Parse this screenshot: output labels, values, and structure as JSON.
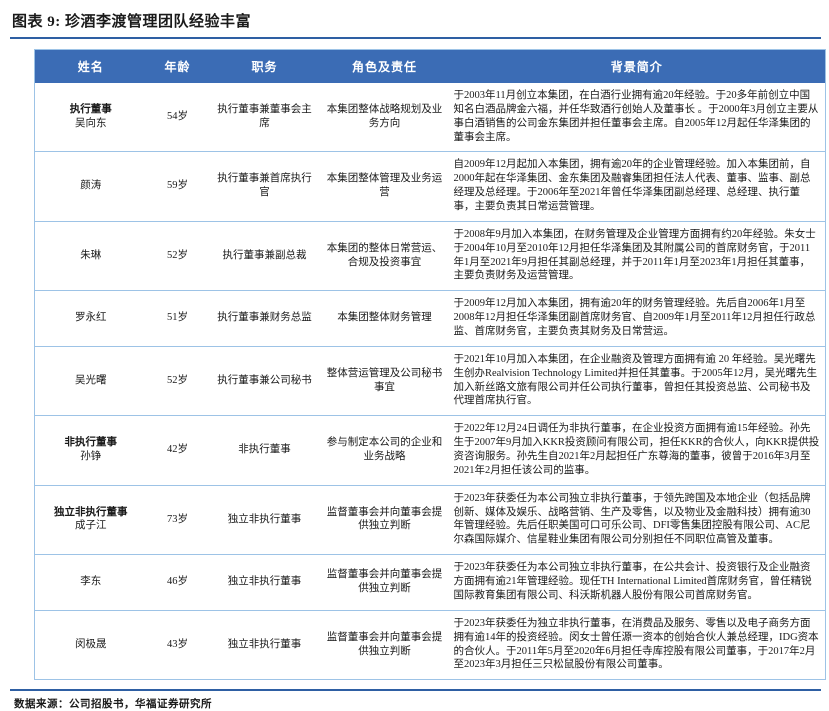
{
  "title": "图表 9: 珍酒李渡管理团队经验丰富",
  "footer": {
    "source": "数据来源：公司招股书，华福证券研究所"
  },
  "colors": {
    "header_bg": "#3b6cb5",
    "rule": "#2e5fa3",
    "row_border": "#9dc3e6"
  },
  "table": {
    "headers": [
      "姓名",
      "年龄",
      "职务",
      "角色及责任",
      "背景简介"
    ],
    "rows": [
      {
        "group": "执行董事",
        "name": "吴向东",
        "age": "54岁",
        "position": "执行董事兼董事会主席",
        "role": "本集团整体战略规划及业务方向",
        "background": "于2003年11月创立本集团，在白酒行业拥有逾20年经验。于20多年前创立中国知名白酒品牌金六福，并任华致酒行创始人及董事长 。于2000年3月创立主要从事白酒销售的公司金东集团并担任董事会主席。自2005年12月起任华泽集团的董事会主席。"
      },
      {
        "group": "",
        "name": "颜涛",
        "age": "59岁",
        "position": "执行董事兼首席执行官",
        "role": "本集团整体管理及业务运营",
        "background": "自2009年12月起加入本集团，拥有逾20年的企业管理经验。加入本集团前，自2000年起在华泽集团、金东集团及融睿集团担任法人代表、董事、监事、副总经理及总经理。于2006年至2021年曾任华泽集团副总经理、总经理、执行董事，主要负责其日常运营管理。"
      },
      {
        "group": "",
        "name": "朱琳",
        "age": "52岁",
        "position": "执行董事兼副总裁",
        "role": "本集团的整体日常营运、合规及投资事宜",
        "background": "于2008年9月加入本集团，在财务管理及企业管理方面拥有约20年经验。朱女士于2004年10月至2010年12月担任华泽集团及其附属公司的首席财务官，于2011年1月至2021年9月担任其副总经理，并于2011年1月至2023年1月担任其董事，主要负责财务及运营管理。"
      },
      {
        "group": "",
        "name": "罗永红",
        "age": "51岁",
        "position": "执行董事兼财务总监",
        "role": "本集团整体财务管理",
        "background": "于2009年12月加入本集团，拥有逾20年的财务管理经验。先后自2006年1月至2008年12月担任华泽集团副首席财务官、自2009年1月至2011年12月担任行政总监、首席财务官，主要负责其财务及日常营运。"
      },
      {
        "group": "",
        "name": "吴光曙",
        "age": "52岁",
        "position": "执行董事兼公司秘书",
        "role": "整体营运管理及公司秘书事宜",
        "background": "于2021年10月加入本集团，在企业融资及管理方面拥有逾 20 年经验。吴光曙先生创办Realvision Technology Limited并担任其董事。于2005年12月，吴光曙先生加入新丝路文旅有限公司并任公司执行董事，曾担任其投资总监、公司秘书及代理首席执行官。"
      },
      {
        "group": "非执行董事",
        "name": "孙铮",
        "age": "42岁",
        "position": "非执行董事",
        "role": "参与制定本公司的企业和业务战略",
        "background": "于2022年12月24日调任为非执行董事，在企业投资方面拥有逾15年经验。孙先生于2007年9月加入KKR投资顾问有限公司，担任KKR的合伙人，向KKR提供投资咨询服务。孙先生自2021年2月起担任广东尊海的董事，彼曾于2016年3月至2021年2月担任该公司的监事。"
      },
      {
        "group": "独立非执行董事",
        "name": "成子江",
        "age": "73岁",
        "position": "独立非执行董事",
        "role": "监督董事会并向董事会提供独立判断",
        "background": "于2023年获委任为本公司独立非执行董事，于领先跨国及本地企业（包括品牌创新、媒体及娱乐、战略营销、生产及零售，以及物业及金融科技）拥有逾30年管理经验。先后任职美国可口可乐公司、DFI零售集团控股有限公司、AC尼尔森国际媒介、信星鞋业集团有限公司分别担任不同职位高管及董事。"
      },
      {
        "group": "",
        "name": "李东",
        "age": "46岁",
        "position": "独立非执行董事",
        "role": "监督董事会并向董事会提供独立判断",
        "background": "于2023年获委任为本公司独立非执行董事，在公共会计、投资银行及企业融资方面拥有逾21年管理经验。现任TH International Limited首席财务官，曾任精锐国际教育集团有限公司、科沃斯机器人股份有限公司首席财务官。"
      },
      {
        "group": "",
        "name": "闵极晟",
        "age": "43岁",
        "position": "独立非执行董事",
        "role": "监督董事会并向董事会提供独立判断",
        "background": "于2023年获委任为独立非执行董事，在消费品及服务、零售以及电子商务方面拥有逾14年的投资经验。闵女士曾任源一资本的创始合伙人兼总经理，IDG资本的合伙人。于2011年5月至2020年6月担任寺库控股有限公司董事，于2017年2月至2023年3月担任三只松鼠股份有限公司董事。"
      }
    ]
  }
}
